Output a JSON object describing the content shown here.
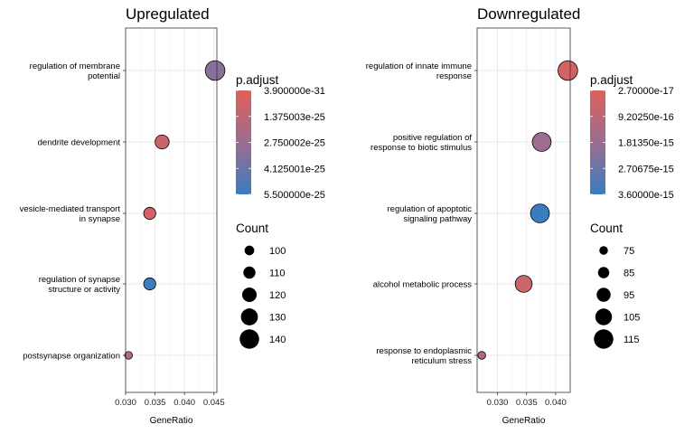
{
  "chart_data": [
    {
      "type": "scatter",
      "title": "Upregulated",
      "xlabel": "GeneRatio",
      "ylabel": "",
      "xlim": [
        0.03,
        0.0455
      ],
      "xticks": [
        0.03,
        0.035,
        0.04,
        0.045
      ],
      "xtick_labels": [
        "0.030",
        "0.035",
        "0.040",
        "0.045"
      ],
      "categories": [
        [
          "regulation of membrane",
          "potential"
        ],
        [
          "dendrite development"
        ],
        [
          "vesicle-mediated transport",
          "in synapse"
        ],
        [
          "regulation of synapse",
          "structure or activity"
        ],
        [
          "postsynapse organization"
        ]
      ],
      "points": [
        {
          "x": 0.0452,
          "count": 141,
          "p_adjust": 3.3e-25
        },
        {
          "x": 0.0362,
          "count": 118,
          "p_adjust": 9e-26
        },
        {
          "x": 0.0341,
          "count": 110,
          "p_adjust": 6e-26
        },
        {
          "x": 0.0341,
          "count": 110,
          "p_adjust": 5.5e-25
        },
        {
          "x": 0.0305,
          "count": 92,
          "p_adjust": 1.5e-25
        }
      ],
      "color_legend": {
        "title": "p.adjust",
        "labels": [
          "3.900000e-31",
          "1.375003e-25",
          "2.750002e-25",
          "4.125001e-25",
          "5.500000e-25"
        ],
        "low_color": "#e0605b",
        "mid_color": "#9a6d90",
        "high_color": "#3a7dbf",
        "range": [
          3.9e-31,
          5.5e-25
        ]
      },
      "size_legend": {
        "title": "Count",
        "values": [
          100,
          110,
          120,
          130,
          140
        ],
        "range": [
          90,
          142
        ]
      }
    },
    {
      "type": "scatter",
      "title": "Downregulated",
      "xlabel": "GeneRatio",
      "ylabel": "",
      "xlim": [
        0.0265,
        0.0425
      ],
      "xticks": [
        0.03,
        0.035,
        0.04
      ],
      "xtick_labels": [
        "0.030",
        "0.035",
        "0.040"
      ],
      "categories": [
        [
          "regulation of innate immune",
          "response"
        ],
        [
          "positive regulation of",
          "response to biotic stimulus"
        ],
        [
          "regulation of apoptotic",
          "signaling pathway"
        ],
        [
          "alcohol metabolic process"
        ],
        [
          "response to endoplasmic",
          "reticulum stress"
        ]
      ],
      "points": [
        {
          "x": 0.0421,
          "count": 116,
          "p_adjust": 3.5e-16
        },
        {
          "x": 0.0376,
          "count": 113,
          "p_adjust": 1.75e-15
        },
        {
          "x": 0.0373,
          "count": 113,
          "p_adjust": 3.6e-15
        },
        {
          "x": 0.0345,
          "count": 106,
          "p_adjust": 5.5e-16
        },
        {
          "x": 0.0273,
          "count": 72,
          "p_adjust": 1.3e-15
        }
      ],
      "color_legend": {
        "title": "p.adjust",
        "labels": [
          "2.70000e-17",
          "9.20250e-16",
          "1.81350e-15",
          "2.70675e-15",
          "3.60000e-15"
        ],
        "low_color": "#e0605b",
        "mid_color": "#9a6d90",
        "high_color": "#3a7dbf",
        "range": [
          2.7e-17,
          3.6e-15
        ]
      },
      "size_legend": {
        "title": "Count",
        "values": [
          75,
          85,
          95,
          105,
          115
        ],
        "range": [
          70,
          117
        ]
      }
    }
  ]
}
